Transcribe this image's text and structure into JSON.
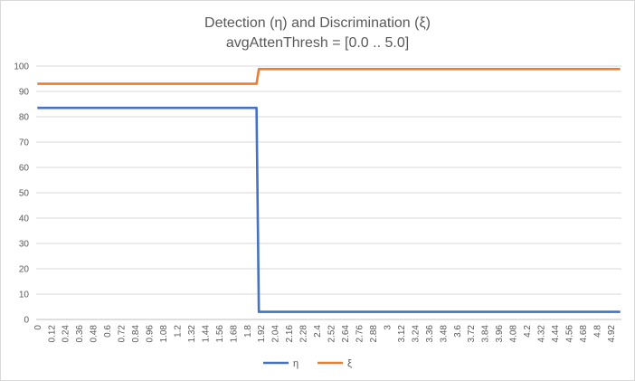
{
  "chart_data": {
    "type": "line",
    "title": "Detection (η) and Discrimination (ξ)",
    "subtitle": "avgAttenThresh = [0.0 .. 5.0]",
    "xlabel": "",
    "ylabel": "",
    "ylim": [
      0,
      100
    ],
    "y_ticks": [
      "0",
      "10",
      "20",
      "30",
      "40",
      "50",
      "60",
      "70",
      "80",
      "90",
      "100"
    ],
    "x_tick_labels": [
      "0",
      "0.12",
      "0.24",
      "0.36",
      "0.48",
      "0.6",
      "0.72",
      "0.84",
      "0.96",
      "1.08",
      "1.2",
      "1.32",
      "1.44",
      "1.56",
      "1.68",
      "1.8",
      "1.92",
      "2.04",
      "2.16",
      "2.28",
      "2.4",
      "2.52",
      "2.64",
      "2.76",
      "2.88",
      "3",
      "3.12",
      "3.24",
      "3.36",
      "3.48",
      "3.6",
      "3.72",
      "3.84",
      "3.96",
      "4.08",
      "4.2",
      "4.32",
      "4.44",
      "4.56",
      "4.68",
      "4.8",
      "4.92"
    ],
    "x_range": [
      0,
      5.0
    ],
    "x_step": 0.02,
    "grid": true,
    "legend": "bottom",
    "series": [
      {
        "name": "η",
        "color": "#4472C4",
        "segments": [
          {
            "x_start": 0,
            "x_end": 1.88,
            "value": 83.5
          },
          {
            "x_start": 1.9,
            "x_end": 5.0,
            "value": 3
          }
        ]
      },
      {
        "name": "ξ",
        "color": "#ED7D31",
        "segments": [
          {
            "x_start": 0,
            "x_end": 1.88,
            "value": 93
          },
          {
            "x_start": 1.9,
            "x_end": 5.0,
            "value": 98.8
          }
        ]
      }
    ]
  }
}
